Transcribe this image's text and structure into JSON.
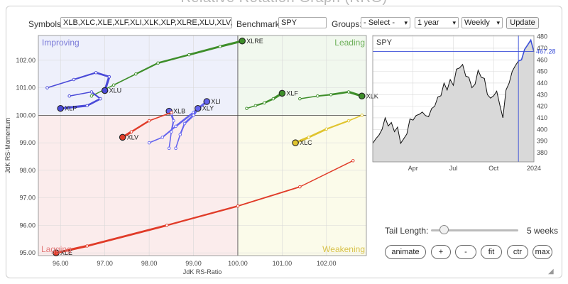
{
  "page": {
    "title": "Relative Rotation Graph (RRG)"
  },
  "controls": {
    "symbols_label": "Symbols:",
    "symbols_value": "XLB,XLC,XLE,XLF,XLI,XLK,XLP,XLRE,XLU,XLV,XL",
    "benchmark_label": "Benchmark:",
    "benchmark_value": "SPY",
    "groups_label": "Groups:",
    "groups_value": "- Select -",
    "period_value": "1 year",
    "frequency_value": "Weekly",
    "update_label": "Update"
  },
  "quadrants": {
    "improving": "Improving",
    "leading": "Leading",
    "lagging": "Lagging",
    "weakening": "Weakening"
  },
  "tail": {
    "label": "Tail Length:",
    "value": "5 weeks",
    "fraction": 0.05
  },
  "buttons": {
    "animate": "animate",
    "zoom_in": "+",
    "zoom_out": "-",
    "fit": "fit",
    "center": "ctr",
    "max": "max"
  },
  "chart_data": [
    {
      "type": "scatter",
      "xlabel": "JdK RS-Ratio",
      "ylabel": "JdK RS-Momentum",
      "xlim": [
        95.5,
        102.9
      ],
      "ylim": [
        94.9,
        102.9
      ],
      "xticks": [
        "96.00",
        "97.00",
        "98.00",
        "99.00",
        "100.00",
        "101.00",
        "102.00"
      ],
      "yticks": [
        "95.00",
        "96.00",
        "97.00",
        "98.00",
        "99.00",
        "100.00",
        "101.00",
        "102.00"
      ],
      "grid": true,
      "series": [
        {
          "name": "XLRE",
          "color": "#3e8e2a",
          "x": [
            96.7,
            97.2,
            97.7,
            98.2,
            98.9,
            99.6,
            100.1
          ],
          "y": [
            100.7,
            101.1,
            101.5,
            101.9,
            102.2,
            102.5,
            102.7
          ]
        },
        {
          "name": "XLF",
          "color": "#3e8e2a",
          "x": [
            100.2,
            100.4,
            100.6,
            100.8,
            101.0
          ],
          "y": [
            100.25,
            100.35,
            100.45,
            100.6,
            100.8
          ]
        },
        {
          "name": "XLK",
          "color": "#3e8e2a",
          "x": [
            101.4,
            101.8,
            102.1,
            102.5,
            102.8
          ],
          "y": [
            100.6,
            100.7,
            100.75,
            100.85,
            100.7
          ]
        },
        {
          "name": "XLU",
          "color": "#4a4ad8",
          "x": [
            95.7,
            96.3,
            96.8,
            97.1,
            97.0
          ],
          "y": [
            101.0,
            101.3,
            101.55,
            101.4,
            100.9
          ]
        },
        {
          "name": "XLP",
          "color": "#4a4ad8",
          "x": [
            96.2,
            96.7,
            96.9,
            96.6,
            96.0
          ],
          "y": [
            100.7,
            100.85,
            100.6,
            100.35,
            100.25
          ]
        },
        {
          "name": "XLB",
          "color": "#6464ee",
          "x": [
            98.45,
            98.5,
            98.55,
            98.5,
            98.45
          ],
          "y": [
            98.8,
            99.4,
            99.8,
            100.05,
            100.15
          ]
        },
        {
          "name": "XLI",
          "color": "#6464ee",
          "x": [
            98.0,
            98.3,
            98.6,
            99.0,
            99.3
          ],
          "y": [
            99.0,
            99.2,
            99.6,
            100.1,
            100.5
          ]
        },
        {
          "name": "XLY",
          "color": "#6464ee",
          "x": [
            98.6,
            98.7,
            98.8,
            99.0,
            99.1
          ],
          "y": [
            98.8,
            99.3,
            99.7,
            100.0,
            100.25
          ]
        },
        {
          "name": "XLV",
          "color": "#e03b28",
          "x": [
            98.5,
            98.0,
            97.6,
            97.4
          ],
          "y": [
            100.1,
            99.8,
            99.4,
            99.2
          ]
        },
        {
          "name": "XLC",
          "color": "#e0c42e",
          "x": [
            102.8,
            102.5,
            102.0,
            101.6,
            101.3
          ],
          "y": [
            100.0,
            99.8,
            99.5,
            99.2,
            99.0
          ]
        },
        {
          "name": "XLE",
          "color": "#e03b28",
          "x": [
            102.6,
            101.4,
            100.0,
            98.4,
            96.6,
            95.9
          ],
          "y": [
            98.35,
            97.4,
            96.7,
            96.0,
            95.25,
            95.0
          ]
        }
      ]
    },
    {
      "type": "line",
      "title": "SPY",
      "last_value": "467.28",
      "xticks": [
        "Apr",
        "Jul",
        "Oct",
        "2024"
      ],
      "yticks": [
        "380",
        "390",
        "400",
        "410",
        "420",
        "430",
        "440",
        "450",
        "460",
        "470",
        "480"
      ],
      "ylim": [
        372,
        481
      ],
      "x": [
        "2023-01-06",
        "2023-01-13",
        "2023-01-20",
        "2023-01-27",
        "2023-02-03",
        "2023-02-10",
        "2023-02-17",
        "2023-02-24",
        "2023-03-03",
        "2023-03-10",
        "2023-03-17",
        "2023-03-24",
        "2023-03-31",
        "2023-04-07",
        "2023-04-14",
        "2023-04-21",
        "2023-04-28",
        "2023-05-05",
        "2023-05-12",
        "2023-05-19",
        "2023-05-26",
        "2023-06-02",
        "2023-06-09",
        "2023-06-16",
        "2023-06-23",
        "2023-06-30",
        "2023-07-07",
        "2023-07-14",
        "2023-07-21",
        "2023-07-28",
        "2023-08-04",
        "2023-08-11",
        "2023-08-18",
        "2023-08-25",
        "2023-09-01",
        "2023-09-08",
        "2023-09-15",
        "2023-09-22",
        "2023-09-29",
        "2023-10-06",
        "2023-10-13",
        "2023-10-20",
        "2023-10-27",
        "2023-11-03",
        "2023-11-10",
        "2023-11-17",
        "2023-11-24",
        "2023-12-01",
        "2023-12-08",
        "2023-12-15",
        "2023-12-22",
        "2023-12-29",
        "2024-01-05"
      ],
      "values": [
        388,
        392,
        395,
        400,
        410,
        403,
        406,
        398,
        402,
        388,
        392,
        396,
        409,
        408,
        412,
        413,
        415,
        412,
        411,
        418,
        420,
        428,
        429,
        440,
        434,
        443,
        438,
        452,
        453,
        456,
        446,
        445,
        436,
        439,
        451,
        445,
        444,
        430,
        427,
        429,
        433,
        421,
        410,
        434,
        440,
        450,
        455,
        459,
        460,
        469,
        473,
        477,
        467
      ]
    }
  ]
}
